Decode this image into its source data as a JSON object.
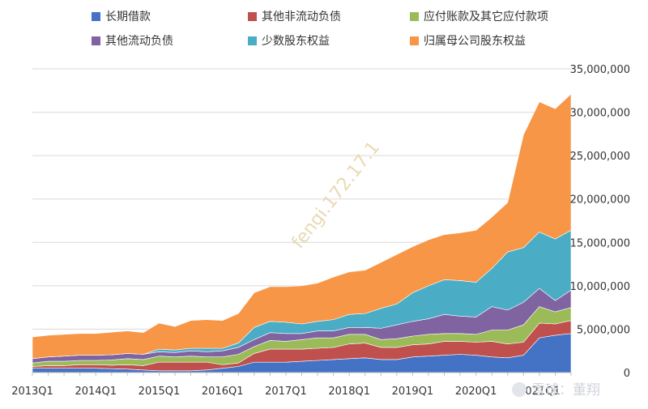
{
  "chart_data": {
    "type": "area",
    "stacked": true,
    "title": "",
    "categories": [
      "2013Q1",
      "2013Q2",
      "2013Q3",
      "2013Q4",
      "2014Q1",
      "2014Q2",
      "2014Q3",
      "2014Q4",
      "2015Q1",
      "2015Q2",
      "2015Q3",
      "2015Q4",
      "2016Q1",
      "2016Q2",
      "2016Q3",
      "2016Q4",
      "2017Q1",
      "2017Q2",
      "2017Q3",
      "2017Q4",
      "2018Q1",
      "2018Q2",
      "2018Q3",
      "2018Q4",
      "2019Q1",
      "2019Q2",
      "2019Q3",
      "2019Q4",
      "2020Q1",
      "2020Q2",
      "2020Q3",
      "2020Q4",
      "2021Q1",
      "2021Q2",
      "2021Q3"
    ],
    "x_tick_labels": [
      "2013Q1",
      "2014Q1",
      "2015Q1",
      "2016Q1",
      "2017Q1",
      "2018Q1",
      "2019Q1",
      "2020Q1",
      "2021Q1"
    ],
    "ylim": [
      0,
      35000000
    ],
    "y_ticks": [
      0,
      5000000,
      10000000,
      15000000,
      20000000,
      25000000,
      30000000,
      35000000
    ],
    "y_tick_labels": [
      "0",
      "5,000,000",
      "10,000,000",
      "15,000,000",
      "20,000,000",
      "25,000,000",
      "30,000,000",
      "35,000,000"
    ],
    "y_axis_position": "right",
    "legend_position": "top",
    "grid": true,
    "series": [
      {
        "name": "长期借款",
        "color": "#4472c4",
        "values": [
          500000,
          500000,
          500000,
          500000,
          500000,
          450000,
          400000,
          300000,
          200000,
          200000,
          200000,
          300000,
          500000,
          700000,
          1200000,
          1200000,
          1200000,
          1300000,
          1400000,
          1500000,
          1600000,
          1700000,
          1500000,
          1500000,
          1800000,
          1900000,
          2000000,
          2100000,
          2000000,
          1800000,
          1700000,
          2000000,
          4000000,
          4300000,
          4500000
        ]
      },
      {
        "name": "其他非流动负债",
        "color": "#c0504d",
        "values": [
          200000,
          300000,
          300000,
          400000,
          400000,
          400000,
          500000,
          500000,
          1000000,
          1000000,
          1000000,
          900000,
          400000,
          400000,
          1000000,
          1500000,
          1500000,
          1400000,
          1400000,
          1400000,
          1700000,
          1700000,
          1400000,
          1400000,
          1400000,
          1400000,
          1600000,
          1500000,
          1500000,
          1800000,
          1600000,
          1500000,
          1700000,
          1300000,
          1500000
        ]
      },
      {
        "name": "应付账款及其它应付款项",
        "color": "#9bbb59",
        "values": [
          400000,
          500000,
          500000,
          500000,
          500000,
          600000,
          700000,
          700000,
          700000,
          600000,
          700000,
          600000,
          900000,
          1000000,
          800000,
          1000000,
          900000,
          1100000,
          1200000,
          1100000,
          1100000,
          1000000,
          900000,
          1000000,
          1000000,
          1100000,
          900000,
          900000,
          900000,
          1300000,
          1600000,
          2000000,
          1900000,
          1400000,
          1500000
        ]
      },
      {
        "name": "其他流动负债",
        "color": "#8064a2",
        "values": [
          500000,
          500000,
          600000,
          600000,
          600000,
          600000,
          600000,
          600000,
          500000,
          500000,
          600000,
          600000,
          700000,
          800000,
          800000,
          900000,
          900000,
          700000,
          800000,
          800000,
          800000,
          800000,
          1300000,
          1600000,
          1700000,
          1800000,
          2200000,
          2000000,
          2000000,
          2700000,
          2300000,
          2600000,
          2100000,
          1300000,
          2000000
        ]
      },
      {
        "name": "少数股东权益",
        "color": "#4bacc6",
        "values": [
          0,
          0,
          0,
          0,
          0,
          0,
          0,
          0,
          300000,
          300000,
          300000,
          400000,
          300000,
          500000,
          1400000,
          1300000,
          1300000,
          1100000,
          1100000,
          1300000,
          1500000,
          1600000,
          2300000,
          2400000,
          3300000,
          3800000,
          4000000,
          4100000,
          4000000,
          4400000,
          6700000,
          6300000,
          6500000,
          7100000,
          6900000
        ]
      },
      {
        "name": "归属母公司股东权益",
        "color": "#f79646",
        "values": [
          2500000,
          2500000,
          2500000,
          2500000,
          2500000,
          2600000,
          2600000,
          2500000,
          3000000,
          2700000,
          3200000,
          3300000,
          3200000,
          3400000,
          4000000,
          4000000,
          4100000,
          4400000,
          4400000,
          4900000,
          4900000,
          5000000,
          5300000,
          5700000,
          5300000,
          5300000,
          5200000,
          5500000,
          6000000,
          5900000,
          5700000,
          13000000,
          15000000,
          15000000,
          15700000
        ]
      }
    ]
  },
  "legend": {
    "items": [
      {
        "label": "长期借款",
        "color": "#4472c4"
      },
      {
        "label": "其他非流动负债",
        "color": "#c0504d"
      },
      {
        "label": "应付账款及其它应付款项",
        "color": "#9bbb59"
      },
      {
        "label": "其他流动负债",
        "color": "#8064a2"
      },
      {
        "label": "少数股东权益",
        "color": "#4bacc6"
      },
      {
        "label": "归属母公司股东权益",
        "color": "#f79646"
      }
    ]
  },
  "watermark": {
    "text": "fengi.172.17.1"
  },
  "brand": {
    "text": "雪球：董翔"
  }
}
